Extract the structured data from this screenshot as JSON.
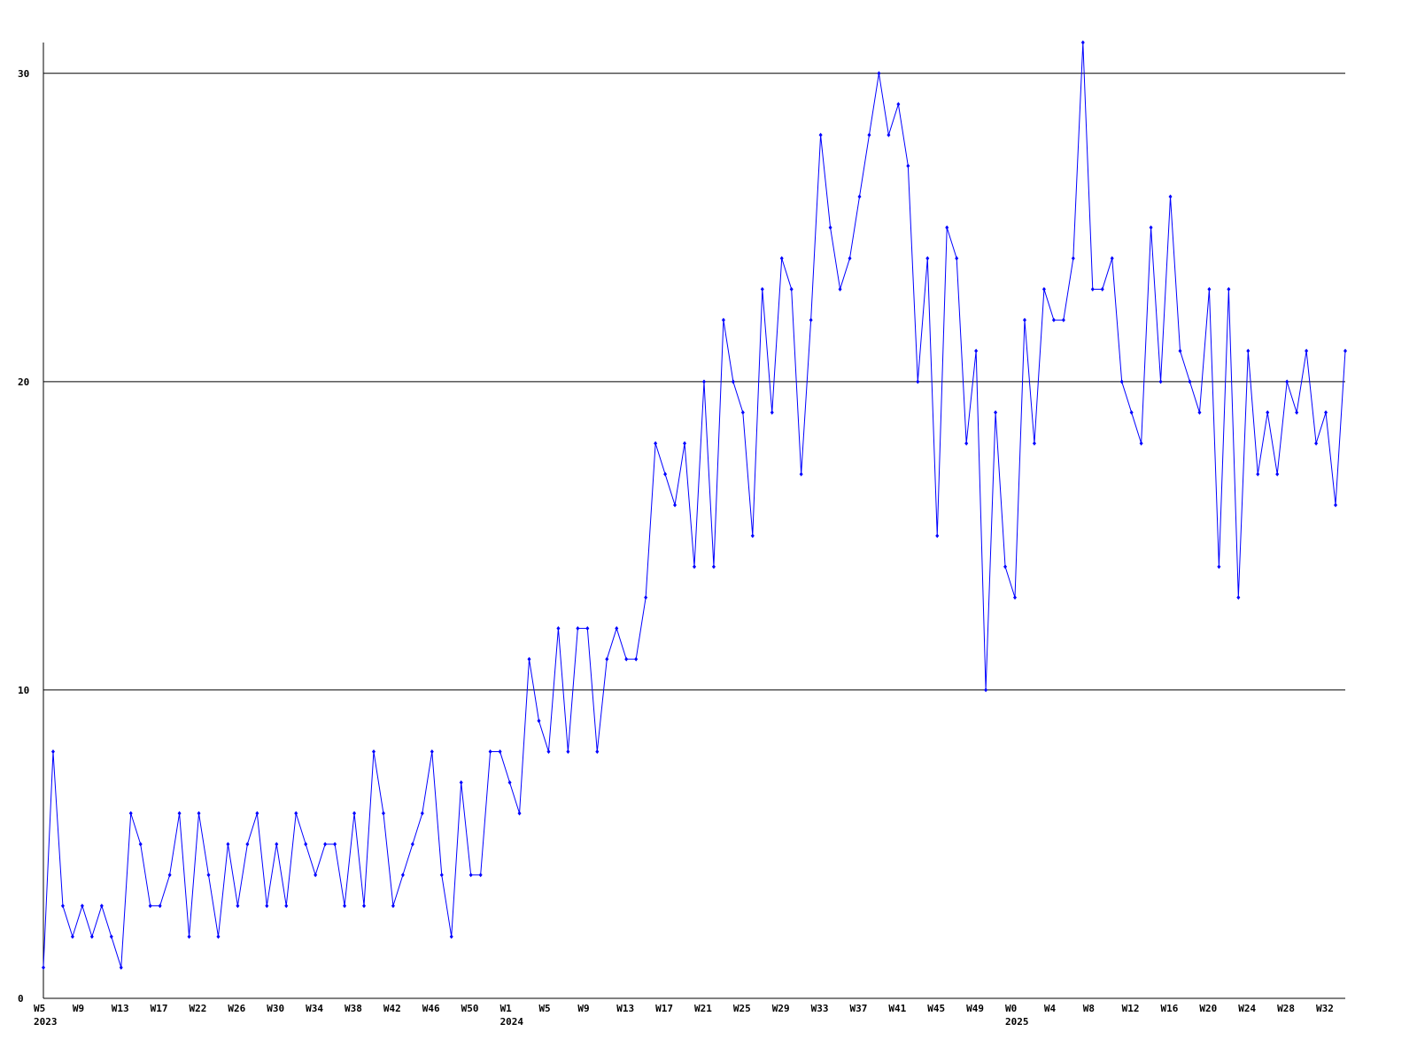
{
  "chart_data": {
    "type": "line",
    "color": "#0000ff",
    "grid": true,
    "ylim": [
      0,
      31
    ],
    "yticks": [
      0,
      10,
      20,
      30
    ],
    "categories": [
      "W5",
      null,
      null,
      null,
      "W9",
      null,
      null,
      null,
      "W13",
      null,
      null,
      null,
      "W17",
      null,
      null,
      null,
      "W22",
      null,
      null,
      null,
      "W26",
      null,
      null,
      null,
      "W30",
      null,
      null,
      null,
      "W34",
      null,
      null,
      null,
      "W38",
      null,
      null,
      null,
      "W42",
      null,
      null,
      null,
      "W46",
      null,
      null,
      null,
      "W50",
      null,
      null,
      null,
      "W1",
      null,
      null,
      null,
      "W5",
      null,
      null,
      null,
      "W9",
      null,
      null,
      null,
      "W13",
      null,
      null,
      null,
      "W17",
      null,
      null,
      null,
      "W21",
      null,
      null,
      null,
      "W25",
      null,
      null,
      null,
      "W29",
      null,
      null,
      null,
      "W33",
      null,
      null,
      null,
      "W37",
      null,
      null,
      null,
      "W41",
      null,
      null,
      null,
      "W45",
      null,
      null,
      null,
      "W49",
      null,
      null,
      null,
      "W0",
      null,
      null,
      null,
      "W4",
      null,
      null,
      null,
      "W8",
      null,
      null,
      null,
      "W12",
      null,
      null,
      null,
      "W16",
      null,
      null,
      null,
      "W20",
      null,
      null,
      null,
      "W24",
      null,
      null,
      null,
      "W28",
      null,
      null,
      null,
      "W32",
      null,
      null
    ],
    "category_years": [
      "2023",
      null,
      null,
      null,
      null,
      null,
      null,
      null,
      null,
      null,
      null,
      null,
      null,
      null,
      null,
      null,
      null,
      null,
      null,
      null,
      null,
      null,
      null,
      null,
      null,
      null,
      null,
      null,
      null,
      null,
      null,
      null,
      null,
      null,
      null,
      null,
      null,
      null,
      null,
      null,
      null,
      null,
      null,
      null,
      null,
      null,
      null,
      null,
      "2024",
      null,
      null,
      null,
      null,
      null,
      null,
      null,
      null,
      null,
      null,
      null,
      null,
      null,
      null,
      null,
      null,
      null,
      null,
      null,
      null,
      null,
      null,
      null,
      null,
      null,
      null,
      null,
      null,
      null,
      null,
      null,
      null,
      null,
      null,
      null,
      null,
      null,
      null,
      null,
      null,
      null,
      null,
      null,
      null,
      null,
      null,
      null,
      null,
      null,
      null,
      null,
      "2025",
      null,
      null,
      null,
      null,
      null,
      null,
      null,
      null,
      null,
      null,
      null,
      null,
      null,
      null,
      null,
      null,
      null,
      null,
      null,
      null,
      null,
      null,
      null,
      null,
      null,
      null,
      null,
      null,
      null,
      null,
      null,
      null,
      null,
      null
    ],
    "values": [
      1,
      8,
      3,
      2,
      3,
      2,
      3,
      2,
      1,
      6,
      5,
      3,
      3,
      4,
      6,
      2,
      6,
      4,
      2,
      5,
      3,
      5,
      6,
      3,
      5,
      3,
      6,
      5,
      4,
      5,
      5,
      3,
      6,
      3,
      8,
      6,
      3,
      4,
      5,
      6,
      8,
      4,
      2,
      7,
      4,
      4,
      8,
      8,
      7,
      6,
      11,
      9,
      8,
      12,
      8,
      12,
      12,
      8,
      11,
      12,
      11,
      11,
      13,
      18,
      17,
      16,
      18,
      14,
      20,
      14,
      22,
      20,
      19,
      15,
      23,
      19,
      24,
      23,
      17,
      22,
      28,
      25,
      23,
      24,
      26,
      28,
      30,
      28,
      29,
      27,
      20,
      24,
      15,
      25,
      24,
      18,
      21,
      10,
      19,
      14,
      13,
      22,
      18,
      23,
      22,
      22,
      24,
      31,
      23,
      23,
      24,
      20,
      19,
      18,
      25,
      20,
      26,
      21,
      20,
      19,
      23,
      14,
      23,
      13,
      21,
      17,
      19,
      17,
      20,
      19,
      21,
      18,
      19,
      16,
      21
    ]
  }
}
